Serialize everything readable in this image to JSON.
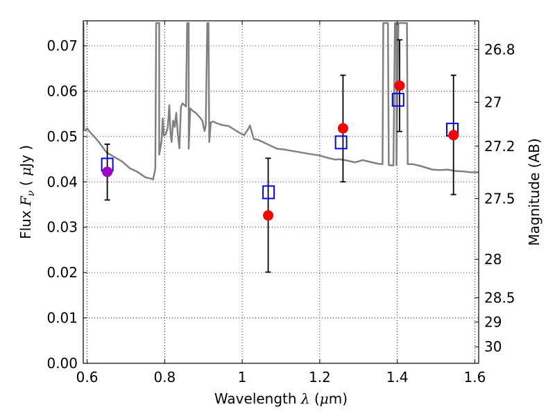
{
  "chart_data": {
    "type": "scatter",
    "title": "",
    "xlabel": {
      "prefix": "Wavelength ",
      "symbol": "λ",
      "unit_open": " (",
      "mu": "μ",
      "unit_rest": "m)"
    },
    "ylabel": {
      "prefix": "Flux ",
      "symbol": "F",
      "sub": "ν",
      "unit_open": " ( ",
      "mu": "μ",
      "unit_rest": "Jy )"
    },
    "y2label": "Magnitude (AB)",
    "xlim": [
      0.59,
      1.61
    ],
    "ylim": [
      0.0,
      0.0755
    ],
    "grid": true,
    "x_ticks": [
      0.6,
      0.8,
      1.0,
      1.2,
      1.4,
      1.6
    ],
    "x_tick_labels": [
      "0.6",
      "0.8",
      "1",
      "1.2",
      "1.4",
      "1.6"
    ],
    "y_ticks": [
      0.0,
      0.01,
      0.02,
      0.03,
      0.04,
      0.05,
      0.06,
      0.07
    ],
    "y_tick_labels": [
      "0.00",
      "0.01",
      "0.02",
      "0.03",
      "0.04",
      "0.05",
      "0.06",
      "0.07"
    ],
    "y2_ticks": [
      {
        "label": "26.8",
        "mag": 26.8
      },
      {
        "label": "27",
        "mag": 27.0
      },
      {
        "label": "27.2",
        "mag": 27.2
      },
      {
        "label": "27.5",
        "mag": 27.5
      },
      {
        "label": "28",
        "mag": 28.0
      },
      {
        "label": "28.5",
        "mag": 28.5
      },
      {
        "label": "29",
        "mag": 29.0
      },
      {
        "label": "30",
        "mag": 30.0
      }
    ],
    "series": [
      {
        "type": "line",
        "color": "#808080",
        "points": [
          [
            0.59,
            0.0705
          ],
          [
            0.5905,
            0.075
          ],
          [
            0.592,
            0.0515
          ],
          [
            0.596,
            0.0513
          ],
          [
            0.6,
            0.0518
          ],
          [
            0.606,
            0.0511
          ],
          [
            0.615,
            0.0503
          ],
          [
            0.63,
            0.0488
          ],
          [
            0.65,
            0.0465
          ],
          [
            0.67,
            0.0455
          ],
          [
            0.69,
            0.0445
          ],
          [
            0.71,
            0.043
          ],
          [
            0.73,
            0.0422
          ],
          [
            0.75,
            0.041
          ],
          [
            0.765,
            0.0407
          ],
          [
            0.77,
            0.0405
          ],
          [
            0.775,
            0.0425
          ],
          [
            0.776,
            0.0433
          ],
          [
            0.778,
            0.075
          ],
          [
            0.786,
            0.075
          ],
          [
            0.786,
            0.046
          ],
          [
            0.792,
            0.049
          ],
          [
            0.795,
            0.054
          ],
          [
            0.798,
            0.0502
          ],
          [
            0.803,
            0.0505
          ],
          [
            0.808,
            0.052
          ],
          [
            0.812,
            0.0569
          ],
          [
            0.815,
            0.051
          ],
          [
            0.818,
            0.0488
          ],
          [
            0.822,
            0.0535
          ],
          [
            0.826,
            0.0521
          ],
          [
            0.83,
            0.0552
          ],
          [
            0.834,
            0.0503
          ],
          [
            0.838,
            0.0474
          ],
          [
            0.842,
            0.0565
          ],
          [
            0.846,
            0.0573
          ],
          [
            0.85,
            0.057
          ],
          [
            0.855,
            0.0566
          ],
          [
            0.858,
            0.075
          ],
          [
            0.862,
            0.075
          ],
          [
            0.862,
            0.0473
          ],
          [
            0.866,
            0.0562
          ],
          [
            0.872,
            0.0557
          ],
          [
            0.88,
            0.0552
          ],
          [
            0.89,
            0.0543
          ],
          [
            0.897,
            0.0535
          ],
          [
            0.9,
            0.0523
          ],
          [
            0.903,
            0.0512
          ],
          [
            0.906,
            0.0524
          ],
          [
            0.91,
            0.075
          ],
          [
            0.913,
            0.075
          ],
          [
            0.915,
            0.0488
          ],
          [
            0.919,
            0.0531
          ],
          [
            0.925,
            0.0533
          ],
          [
            0.935,
            0.0529
          ],
          [
            0.942,
            0.0527
          ],
          [
            0.95,
            0.0525
          ],
          [
            0.965,
            0.0523
          ],
          [
            0.98,
            0.0515
          ],
          [
            0.993,
            0.0508
          ],
          [
            1.005,
            0.0503
          ],
          [
            1.015,
            0.0516
          ],
          [
            1.02,
            0.0524
          ],
          [
            1.03,
            0.0494
          ],
          [
            1.04,
            0.0493
          ],
          [
            1.055,
            0.0487
          ],
          [
            1.075,
            0.0479
          ],
          [
            1.09,
            0.0473
          ],
          [
            1.11,
            0.0471
          ],
          [
            1.13,
            0.0468
          ],
          [
            1.15,
            0.0465
          ],
          [
            1.17,
            0.0462
          ],
          [
            1.2,
            0.0458
          ],
          [
            1.225,
            0.0452
          ],
          [
            1.24,
            0.0449
          ],
          [
            1.25,
            0.045
          ],
          [
            1.27,
            0.0447
          ],
          [
            1.29,
            0.0443
          ],
          [
            1.3,
            0.0445
          ],
          [
            1.31,
            0.0448
          ],
          [
            1.33,
            0.0444
          ],
          [
            1.35,
            0.044
          ],
          [
            1.362,
            0.0439
          ],
          [
            1.364,
            0.075
          ],
          [
            1.37,
            0.075
          ],
          [
            1.376,
            0.075
          ],
          [
            1.378,
            0.0437
          ],
          [
            1.39,
            0.0436
          ],
          [
            1.394,
            0.075
          ],
          [
            1.398,
            0.075
          ],
          [
            1.398,
            0.0437
          ],
          [
            1.403,
            0.075
          ],
          [
            1.425,
            0.075
          ],
          [
            1.427,
            0.0439
          ],
          [
            1.44,
            0.0439
          ],
          [
            1.46,
            0.0435
          ],
          [
            1.475,
            0.0431
          ],
          [
            1.49,
            0.0427
          ],
          [
            1.51,
            0.0426
          ],
          [
            1.53,
            0.0427
          ],
          [
            1.55,
            0.0424
          ],
          [
            1.57,
            0.0423
          ],
          [
            1.59,
            0.0421
          ],
          [
            1.61,
            0.0421
          ]
        ]
      },
      {
        "type": "errorbar",
        "color": "#000000",
        "points": [
          {
            "x": 0.652,
            "y": 0.0422,
            "ylo": 0.036,
            "yhi": 0.0483
          },
          {
            "x": 1.067,
            "y": 0.0326,
            "ylo": 0.0201,
            "yhi": 0.0452
          },
          {
            "x": 1.26,
            "y": 0.0518,
            "ylo": 0.04,
            "yhi": 0.0635
          },
          {
            "x": 1.406,
            "y": 0.0612,
            "ylo": 0.0511,
            "yhi": 0.0713
          },
          {
            "x": 1.545,
            "y": 0.0503,
            "ylo": 0.0372,
            "yhi": 0.0635
          }
        ]
      },
      {
        "type": "scatter",
        "marker": "square",
        "color": "#0000ff",
        "points": [
          {
            "x": 0.652,
            "y": 0.0438
          },
          {
            "x": 1.068,
            "y": 0.0377
          },
          {
            "x": 1.255,
            "y": 0.0487
          },
          {
            "x": 1.402,
            "y": 0.0581
          },
          {
            "x": 1.542,
            "y": 0.0515
          }
        ]
      },
      {
        "type": "scatter",
        "marker": "circle",
        "points": [
          {
            "x": 0.652,
            "y": 0.0422,
            "color": "#a000c0"
          },
          {
            "x": 1.067,
            "y": 0.0326,
            "color": "#ff0000"
          },
          {
            "x": 1.26,
            "y": 0.0518,
            "color": "#ff0000"
          },
          {
            "x": 1.406,
            "y": 0.0612,
            "color": "#ff0000"
          },
          {
            "x": 1.545,
            "y": 0.0503,
            "color": "#ff0000"
          }
        ]
      }
    ]
  }
}
